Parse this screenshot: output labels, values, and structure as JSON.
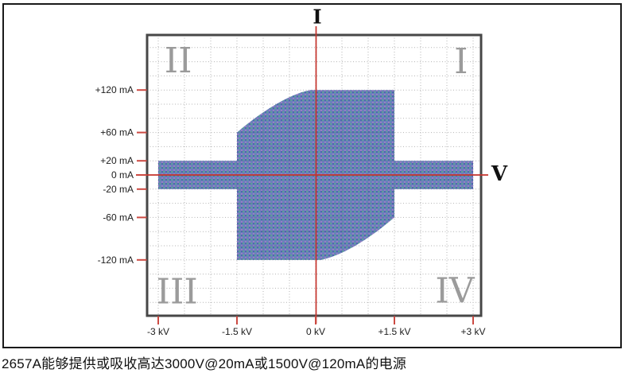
{
  "figure": {
    "caption": "2657A能够提供或吸收高达3000V@20mA或1500V@120mA的电源"
  },
  "colors": {
    "axis_red": "#c5332c",
    "tick_red": "#cc4a42",
    "grid_gray": "#b3b3b3",
    "grid_over_fill": "#56629e",
    "frame_gray": "#474747",
    "quadrant_gray": "#9b9b9b",
    "tick_label_dark": "#1d1d1d",
    "axis_letter_black": "#111111",
    "envelope_base": "#6a81bb",
    "envelope_dot_green": "#5d9f97",
    "envelope_dot_purple": "#987fc4",
    "envelope_dot_dark": "#4e69ae"
  },
  "chart_data": {
    "type": "area",
    "title": "",
    "description": "Keithley 2657A SourceMeter V-I operating envelope across four quadrants: up to ±3 kV at ±20 mA, and up to ±1.5 kV at ±120 mA",
    "x_axis": {
      "label": "V",
      "unit": "kV",
      "range": [
        -3,
        3
      ],
      "ticks": [
        {
          "value": -3,
          "label": "-3 kV"
        },
        {
          "value": -1.5,
          "label": "-1.5 kV"
        },
        {
          "value": 0,
          "label": "0 kV"
        },
        {
          "value": 1.5,
          "label": "+1.5 kV"
        },
        {
          "value": 3,
          "label": "+3 kV"
        }
      ]
    },
    "y_axis": {
      "label": "I",
      "unit": "mA",
      "range": [
        -200,
        200
      ],
      "ticks": [
        {
          "value": 120,
          "label": "+120 mA"
        },
        {
          "value": 60,
          "label": "+60 mA"
        },
        {
          "value": 20,
          "label": "+20 mA"
        },
        {
          "value": 0,
          "label": "0 mA"
        },
        {
          "value": -20,
          "label": "-20 mA"
        },
        {
          "value": -60,
          "label": "-60 mA"
        },
        {
          "value": -120,
          "label": "-120 mA"
        }
      ]
    },
    "grid": {
      "style": "dotted",
      "x_step_kv": 0.5,
      "x_min": -3,
      "x_max": 3,
      "y_step_ma": 20,
      "y_min": -180,
      "y_max": 180
    },
    "quadrant_labels": [
      {
        "label": "I",
        "v": 2.77,
        "i": 160
      },
      {
        "label": "II",
        "v": -2.62,
        "i": 161
      },
      {
        "label": "III",
        "v": -2.64,
        "i": -165
      },
      {
        "label": "IV",
        "v": 2.65,
        "i": -164
      }
    ],
    "envelope": {
      "specs": {
        "max_voltage_kv": 3,
        "current_at_max_voltage_ma": 20,
        "max_current_ma": 120,
        "voltage_at_max_current_kv": 1.5
      },
      "outline": {
        "start": [
          -0.1,
          120
        ],
        "segments": [
          {
            "t": "L",
            "p": [
              1.5,
              120
            ]
          },
          {
            "t": "L",
            "p": [
              1.5,
              20
            ]
          },
          {
            "t": "L",
            "p": [
              3,
              20
            ]
          },
          {
            "t": "L",
            "p": [
              3,
              -20
            ]
          },
          {
            "t": "L",
            "p": [
              1.5,
              -20
            ]
          },
          {
            "t": "L",
            "p": [
              1.5,
              -60
            ]
          },
          {
            "t": "C",
            "c1": [
              0.95,
              -95
            ],
            "c2": [
              0.45,
              -115
            ],
            "p": [
              0.1,
              -120
            ]
          },
          {
            "t": "L",
            "p": [
              -1.5,
              -120
            ]
          },
          {
            "t": "L",
            "p": [
              -1.5,
              -20
            ]
          },
          {
            "t": "L",
            "p": [
              -3,
              -20
            ]
          },
          {
            "t": "L",
            "p": [
              -3,
              20
            ]
          },
          {
            "t": "L",
            "p": [
              -1.5,
              20
            ]
          },
          {
            "t": "L",
            "p": [
              -1.5,
              60
            ]
          },
          {
            "t": "C",
            "c1": [
              -0.95,
              95
            ],
            "c2": [
              -0.45,
              115
            ],
            "p": [
              -0.1,
              120
            ]
          }
        ]
      }
    }
  }
}
